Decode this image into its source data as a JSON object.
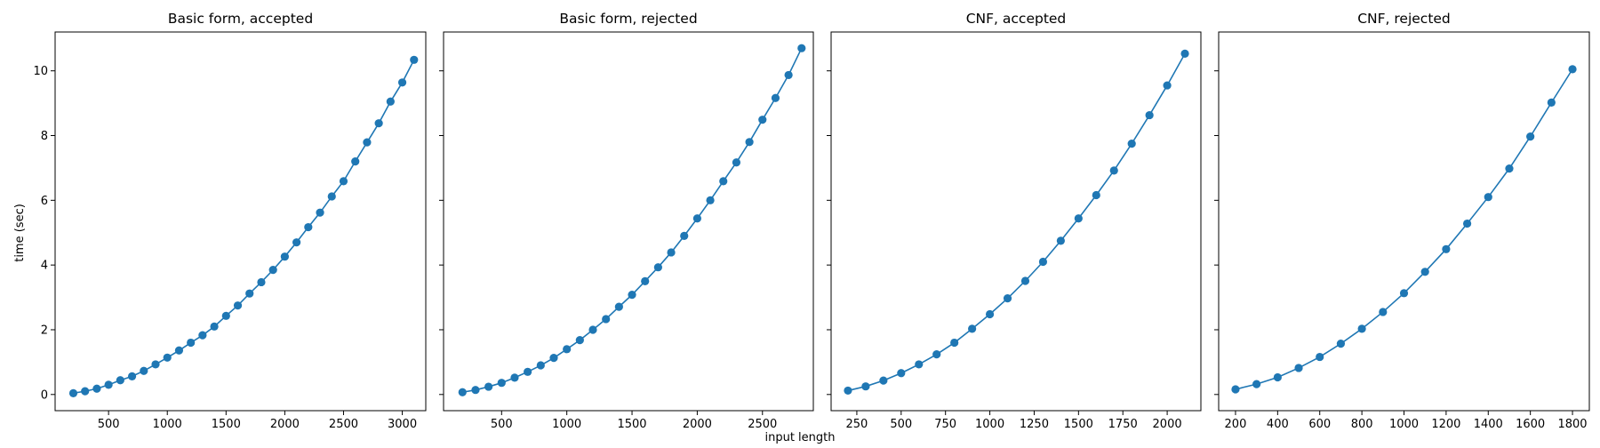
{
  "figure": {
    "xlabel": "input length",
    "ylabel": "time (sec)"
  },
  "colors": {
    "series": "#1f77b4",
    "axes": "#000000",
    "background": "#ffffff"
  },
  "chart_data": [
    {
      "type": "line",
      "title": "Basic form, accepted",
      "markers": true,
      "grid": false,
      "xlim": [
        45,
        3200
      ],
      "ylim": [
        -0.5,
        11.2
      ],
      "xticks": [
        500,
        1000,
        1500,
        2000,
        2500,
        3000
      ],
      "yticks": [
        0,
        2,
        4,
        6,
        8,
        10
      ],
      "x": [
        200,
        300,
        400,
        500,
        600,
        700,
        800,
        900,
        1000,
        1100,
        1200,
        1300,
        1400,
        1500,
        1600,
        1700,
        1800,
        1900,
        2000,
        2100,
        2200,
        2300,
        2400,
        2500,
        2600,
        2700,
        2800,
        2900,
        3000,
        3100
      ],
      "y": [
        0.04,
        0.1,
        0.18,
        0.3,
        0.44,
        0.56,
        0.73,
        0.93,
        1.14,
        1.36,
        1.6,
        1.83,
        2.1,
        2.43,
        2.75,
        3.12,
        3.47,
        3.85,
        4.26,
        4.7,
        5.17,
        5.62,
        6.12,
        6.59,
        7.2,
        7.79,
        8.38,
        9.05,
        9.64,
        10.34
      ]
    },
    {
      "type": "line",
      "title": "Basic form, rejected",
      "markers": true,
      "grid": false,
      "xlim": [
        55,
        2890
      ],
      "ylim": [
        -0.5,
        11.2
      ],
      "xticks": [
        500,
        1000,
        1500,
        2000,
        2500
      ],
      "yticks": [
        0,
        2,
        4,
        6,
        8,
        10
      ],
      "x": [
        200,
        300,
        400,
        500,
        600,
        700,
        800,
        900,
        1000,
        1100,
        1200,
        1300,
        1400,
        1500,
        1600,
        1700,
        1800,
        1900,
        2000,
        2100,
        2200,
        2300,
        2400,
        2500,
        2600,
        2700,
        2800
      ],
      "y": [
        0.07,
        0.14,
        0.24,
        0.36,
        0.52,
        0.7,
        0.9,
        1.13,
        1.4,
        1.68,
        2.0,
        2.33,
        2.71,
        3.08,
        3.5,
        3.93,
        4.39,
        4.9,
        5.44,
        6.0,
        6.59,
        7.17,
        7.8,
        8.49,
        9.16,
        9.87,
        10.7
      ]
    },
    {
      "type": "line",
      "title": "CNF, accepted",
      "markers": true,
      "grid": false,
      "xlim": [
        105,
        2190
      ],
      "ylim": [
        -0.5,
        11.2
      ],
      "xticks": [
        250,
        500,
        750,
        1000,
        1250,
        1500,
        1750,
        2000
      ],
      "yticks": [
        0,
        2,
        4,
        6,
        8,
        10
      ],
      "x": [
        200,
        300,
        400,
        500,
        600,
        700,
        800,
        900,
        1000,
        1100,
        1200,
        1300,
        1400,
        1500,
        1600,
        1700,
        1800,
        1900,
        2000,
        2100
      ],
      "y": [
        0.12,
        0.25,
        0.43,
        0.66,
        0.93,
        1.24,
        1.6,
        2.03,
        2.48,
        2.97,
        3.51,
        4.1,
        4.75,
        5.44,
        6.16,
        6.92,
        7.75,
        8.63,
        9.55,
        10.53
      ]
    },
    {
      "type": "line",
      "title": "CNF, rejected",
      "markers": true,
      "grid": false,
      "xlim": [
        120,
        1880
      ],
      "ylim": [
        -0.5,
        11.2
      ],
      "xticks": [
        200,
        400,
        600,
        800,
        1000,
        1200,
        1400,
        1600,
        1800
      ],
      "yticks": [
        0,
        2,
        4,
        6,
        8,
        10
      ],
      "x": [
        200,
        300,
        400,
        500,
        600,
        700,
        800,
        900,
        1000,
        1100,
        1200,
        1300,
        1400,
        1500,
        1600,
        1700,
        1800
      ],
      "y": [
        0.16,
        0.32,
        0.53,
        0.82,
        1.16,
        1.57,
        2.03,
        2.55,
        3.13,
        3.79,
        4.49,
        5.28,
        6.1,
        6.98,
        7.97,
        9.02,
        10.05
      ]
    }
  ]
}
